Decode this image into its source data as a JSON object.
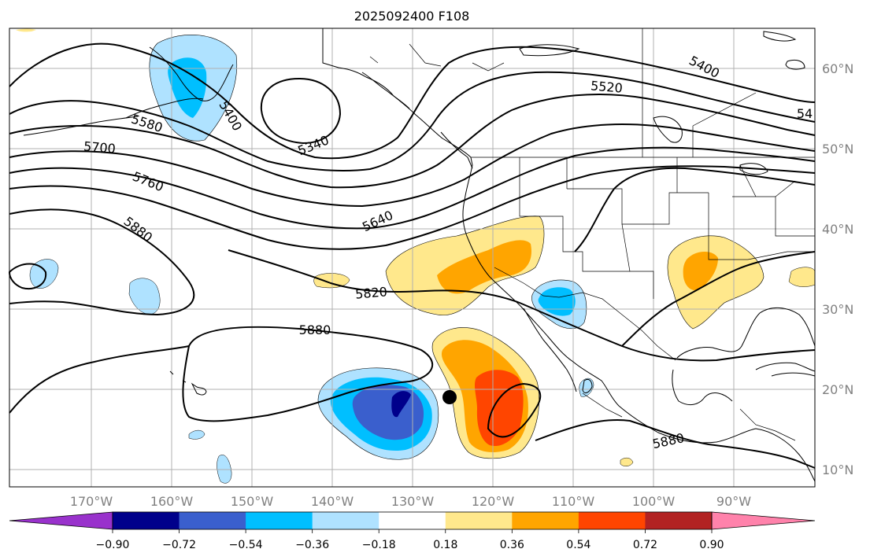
{
  "title": "2025092400 F108",
  "map": {
    "lon_labels": [
      "170°W",
      "160°W",
      "150°W",
      "140°W",
      "130°W",
      "120°W",
      "110°W",
      "100°W",
      "90°W"
    ],
    "lat_labels": [
      "60°N",
      "50°N",
      "40°N",
      "30°N",
      "20°N",
      "10°N"
    ],
    "contour_labels": [
      "5400",
      "5340",
      "5520",
      "5400",
      "5580",
      "5700",
      "5760",
      "5880",
      "5640",
      "5820",
      "5880",
      "5880",
      "54"
    ],
    "marker": "storm-center-dot"
  },
  "colorbar": {
    "ticks": [
      "−0.90",
      "−0.72",
      "−0.54",
      "−0.36",
      "−0.18",
      "0.18",
      "0.36",
      "0.54",
      "0.72",
      "0.90"
    ],
    "colors": [
      "#9932cc",
      "#00008b",
      "#3a5fcd",
      "#00bfff",
      "#afe2ff",
      "#ffffff",
      "#ffe88c",
      "#ffa500",
      "#ff4500",
      "#b22222",
      "#ff82ab"
    ]
  }
}
